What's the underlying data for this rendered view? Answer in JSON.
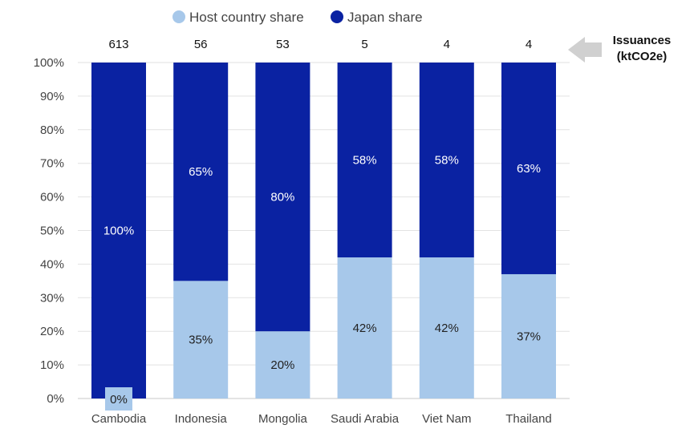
{
  "chart_data": {
    "type": "bar",
    "stacked": true,
    "percent": true,
    "categories": [
      "Cambodia",
      "Indonesia",
      "Mongolia",
      "Saudi Arabia",
      "Viet Nam",
      "Thailand"
    ],
    "series": [
      {
        "name": "Host country share",
        "color": "#a7c8ea",
        "values": [
          0,
          35,
          20,
          42,
          42,
          37
        ],
        "labels": [
          "0%",
          "35%",
          "20%",
          "42%",
          "42%",
          "37%"
        ]
      },
      {
        "name": "Japan share",
        "color": "#0a22a2",
        "values": [
          100,
          65,
          80,
          58,
          58,
          63
        ],
        "labels": [
          "100%",
          "65%",
          "80%",
          "58%",
          "58%",
          "63%"
        ]
      }
    ],
    "issuances": [
      "613",
      "56",
      "53",
      "5",
      "4",
      "4"
    ],
    "issuances_label": [
      "Issuances",
      "(ktCO2e)"
    ],
    "yticks": [
      "0%",
      "10%",
      "20%",
      "30%",
      "40%",
      "50%",
      "60%",
      "70%",
      "80%",
      "90%",
      "100%"
    ],
    "ylim": [
      0,
      100
    ],
    "grid": true,
    "legend_position": "top-center"
  }
}
